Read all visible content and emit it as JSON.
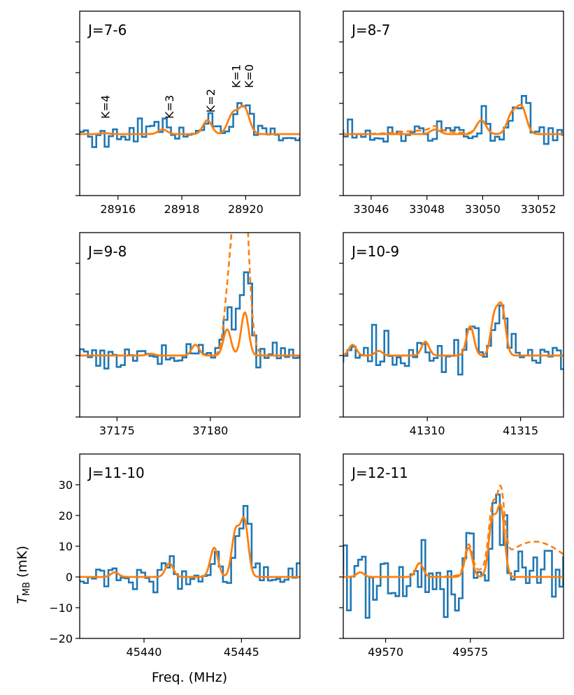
{
  "figure": {
    "xlabel": "Freq. (MHz)",
    "ylabel_main": "T",
    "ylabel_sub": "MB",
    "ylabel_unit": " (mK)"
  },
  "colors": {
    "observed": "#1f77b4",
    "model": "#ff7f0e"
  },
  "chart_data": [
    {
      "type": "line",
      "panel_title": "J=7-6",
      "xlim": [
        28914.8,
        28921.7
      ],
      "ylim": [
        -20,
        40
      ],
      "xticks": [
        28916,
        28918,
        28920
      ],
      "yticks": [
        -20,
        -10,
        0,
        10,
        20,
        30
      ],
      "show_ytick_labels": false,
      "annotations": [
        {
          "text": "K=4",
          "x": 28915.6,
          "y": 5
        },
        {
          "text": "K=3",
          "x": 28917.6,
          "y": 5
        },
        {
          "text": "K=2",
          "x": 28918.9,
          "y": 7
        },
        {
          "text": "K=1",
          "x": 28919.7,
          "y": 15
        },
        {
          "text": "K=0",
          "x": 28920.1,
          "y": 15
        }
      ],
      "lines": [
        {
          "name": "K=4",
          "center": 28915.6,
          "peak": 0.3,
          "width": 0.14
        },
        {
          "name": "K=3",
          "center": 28917.4,
          "peak": 1.5,
          "width": 0.14
        },
        {
          "name": "K=2",
          "center": 28918.8,
          "peak": 4.5,
          "width": 0.14
        },
        {
          "name": "K=1",
          "center": 28919.6,
          "peak": 6.5,
          "width": 0.16
        },
        {
          "name": "K=0",
          "center": 28919.95,
          "peak": 8.5,
          "width": 0.16
        }
      ],
      "observed_noise": 2.2,
      "observed_step": 0.13,
      "model_dashed": false
    },
    {
      "type": "line",
      "panel_title": "J=8-7",
      "xlim": [
        33045.0,
        33052.9
      ],
      "ylim": [
        -20,
        40
      ],
      "xticks": [
        33046,
        33048,
        33050,
        33052
      ],
      "yticks": [
        -20,
        -10,
        0,
        10,
        20,
        30
      ],
      "show_ytick_labels": false,
      "annotations": [],
      "lines": [
        {
          "center": 33048.3,
          "peak": 1.5,
          "width": 0.17
        },
        {
          "center": 33049.95,
          "peak": 4.5,
          "width": 0.17
        },
        {
          "center": 33051.05,
          "peak": 6.5,
          "width": 0.17
        },
        {
          "center": 33051.4,
          "peak": 8.5,
          "width": 0.17
        }
      ],
      "observed_noise": 2.4,
      "observed_step": 0.16,
      "model_dashed": true,
      "dashed_extra": {
        "center": 33048.0,
        "peak": 1.2,
        "width": 0.9
      }
    },
    {
      "type": "line",
      "panel_title": "J=9-8",
      "xlim": [
        37173.0,
        37184.8
      ],
      "ylim": [
        -20,
        40
      ],
      "xticks": [
        37175,
        37180
      ],
      "yticks": [
        -20,
        -10,
        0,
        10,
        20,
        30
      ],
      "show_ytick_labels": false,
      "annotations": [],
      "lines": [
        {
          "center": 37176.8,
          "peak": 0.6,
          "width": 0.2
        },
        {
          "center": 37179.2,
          "peak": 3.5,
          "width": 0.2
        },
        {
          "center": 37180.9,
          "peak": 8.5,
          "width": 0.2
        },
        {
          "center": 37181.85,
          "peak": 14.0,
          "width": 0.2
        }
      ],
      "observed_noise": 3.0,
      "observed_step": 0.22,
      "model_dashed": true,
      "dashed_extra": {
        "center": 37181.55,
        "peak": 65,
        "width": 0.38
      }
    },
    {
      "type": "line",
      "panel_title": "J=10-9",
      "xlim": [
        41305.5,
        41317.3
      ],
      "ylim": [
        -20,
        40
      ],
      "xticks": [
        41310,
        41315
      ],
      "yticks": [
        -20,
        -10,
        0,
        10,
        20,
        30
      ],
      "show_ytick_labels": false,
      "annotations": [],
      "lines": [
        {
          "center": 41306.0,
          "peak": 3.5,
          "width": 0.2
        },
        {
          "center": 41307.4,
          "peak": 1.5,
          "width": 0.2
        },
        {
          "center": 41309.9,
          "peak": 4.5,
          "width": 0.2
        },
        {
          "center": 41312.3,
          "peak": 9.5,
          "width": 0.2
        },
        {
          "center": 41313.6,
          "peak": 12.5,
          "width": 0.2
        },
        {
          "center": 41314.0,
          "peak": 15.0,
          "width": 0.2
        }
      ],
      "observed_noise": 4.0,
      "observed_step": 0.22,
      "model_dashed": true
    },
    {
      "type": "line",
      "panel_title": "J=11-10",
      "xlim": [
        45436.7,
        45448.0
      ],
      "ylim": [
        -20,
        40
      ],
      "xticks": [
        45440,
        45445
      ],
      "yticks": [
        -20,
        -10,
        0,
        10,
        20,
        30
      ],
      "show_ytick_labels": true,
      "annotations": [],
      "lines": [
        {
          "center": 45438.5,
          "peak": 1.5,
          "width": 0.2
        },
        {
          "center": 45441.3,
          "peak": 4.5,
          "width": 0.2
        },
        {
          "center": 45443.6,
          "peak": 9.5,
          "width": 0.2
        },
        {
          "center": 45444.7,
          "peak": 14.5,
          "width": 0.2
        },
        {
          "center": 45445.15,
          "peak": 18.0,
          "width": 0.2
        }
      ],
      "observed_noise": 3.0,
      "observed_step": 0.21,
      "model_dashed": false
    },
    {
      "type": "line",
      "panel_title": "J=12-11",
      "xlim": [
        49567.5,
        49580.5
      ],
      "ylim": [
        -20,
        40
      ],
      "xticks": [
        49570,
        49575
      ],
      "yticks": [
        -20,
        -10,
        0,
        10,
        20,
        30
      ],
      "show_ytick_labels": false,
      "annotations": [],
      "lines": [
        {
          "center": 49568.5,
          "peak": 1.5,
          "width": 0.22
        },
        {
          "center": 49572.0,
          "peak": 4.5,
          "width": 0.22
        },
        {
          "center": 49574.9,
          "peak": 9.5,
          "width": 0.22
        },
        {
          "center": 49576.3,
          "peak": 18.0,
          "width": 0.22
        },
        {
          "center": 49576.8,
          "peak": 22.0,
          "width": 0.22
        }
      ],
      "observed_noise": 7.0,
      "observed_step": 0.22,
      "model_dashed": true,
      "dashed_extra": {
        "center": 49578.8,
        "peak": 11.5,
        "width": 1.8
      }
    }
  ]
}
